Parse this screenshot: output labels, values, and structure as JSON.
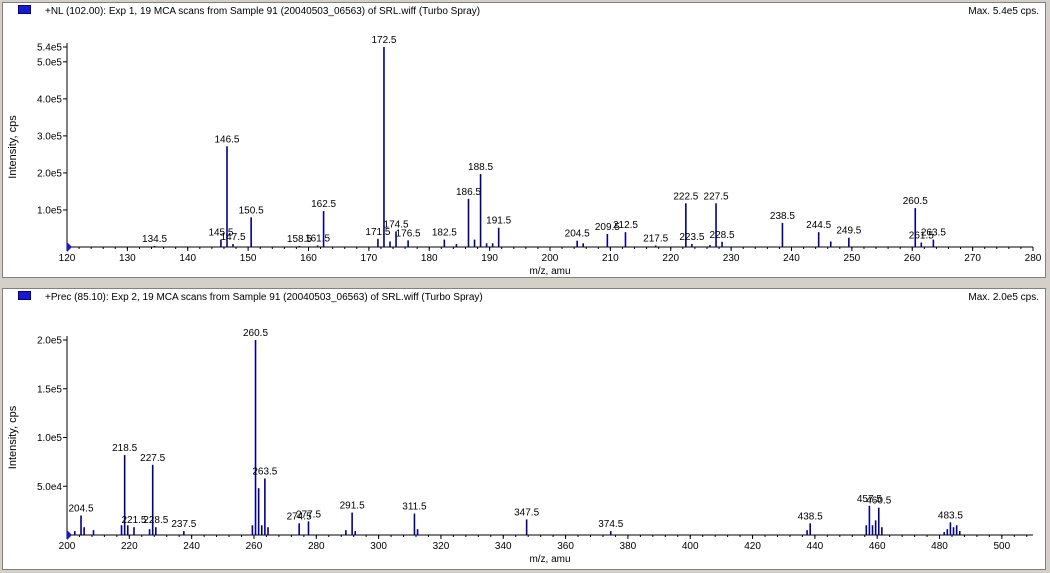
{
  "colors": {
    "series": "#00008b",
    "axis": "#000000",
    "marker": "#1a1acc"
  },
  "panels": [
    {
      "title": "+NL (102.00): Exp 1, 19 MCA scans from Sample 91 (20040503_06563) of SRL.wiff (Turbo Spray)",
      "max_label": "Max. 5.4e5 cps."
    },
    {
      "title": "+Prec (85.10): Exp 2, 19 MCA scans from Sample 91 (20040503_06563) of SRL.wiff (Turbo Spray)",
      "max_label": "Max. 2.0e5 cps."
    }
  ],
  "chart_data": [
    {
      "type": "bar",
      "xlabel": "m/z, amu",
      "ylabel": "Intensity, cps",
      "xlim": [
        120,
        280
      ],
      "ylim": [
        0,
        540000
      ],
      "x_ticks": [
        120,
        130,
        140,
        150,
        160,
        170,
        180,
        190,
        200,
        210,
        220,
        230,
        240,
        250,
        260,
        270,
        280
      ],
      "y_ticks": [
        {
          "value": 100000,
          "label": "1.0e5"
        },
        {
          "value": 200000,
          "label": "2.0e5"
        },
        {
          "value": 300000,
          "label": "3.0e5"
        },
        {
          "value": 400000,
          "label": "4.0e5"
        },
        {
          "value": 500000,
          "label": "5.0e5"
        },
        {
          "value": 540000,
          "label": "5.4e5"
        }
      ],
      "peaks": [
        {
          "x": 134.5,
          "y": 3000,
          "label": "134.5"
        },
        {
          "x": 145.5,
          "y": 20000,
          "label": "145.5"
        },
        {
          "x": 146.5,
          "y": 272000,
          "label": "146.5"
        },
        {
          "x": 147.5,
          "y": 8000,
          "label": "147.5"
        },
        {
          "x": 150.5,
          "y": 80000,
          "label": "150.5"
        },
        {
          "x": 158.5,
          "y": 3000,
          "label": "158.5"
        },
        {
          "x": 161.5,
          "y": 4000,
          "label": "161.5"
        },
        {
          "x": 162.5,
          "y": 97000,
          "label": "162.5"
        },
        {
          "x": 171.5,
          "y": 22000,
          "label": "171.5"
        },
        {
          "x": 172.5,
          "y": 540000,
          "label": "172.5"
        },
        {
          "x": 173.5,
          "y": 15000
        },
        {
          "x": 174.5,
          "y": 42000,
          "label": "174.5"
        },
        {
          "x": 176.5,
          "y": 18000,
          "label": "176.5"
        },
        {
          "x": 182.5,
          "y": 20000,
          "label": "182.5"
        },
        {
          "x": 184.5,
          "y": 8000
        },
        {
          "x": 186.5,
          "y": 130000,
          "label": "186.5"
        },
        {
          "x": 187.5,
          "y": 20000
        },
        {
          "x": 188.5,
          "y": 197000,
          "label": "188.5"
        },
        {
          "x": 189.5,
          "y": 10000
        },
        {
          "x": 190.5,
          "y": 10000
        },
        {
          "x": 191.5,
          "y": 52000,
          "label": "191.5"
        },
        {
          "x": 204.5,
          "y": 17000,
          "label": "204.5"
        },
        {
          "x": 205.5,
          "y": 10000
        },
        {
          "x": 209.5,
          "y": 35000,
          "label": "209.5"
        },
        {
          "x": 212.5,
          "y": 40000,
          "label": "212.5"
        },
        {
          "x": 217.5,
          "y": 4000,
          "label": "217.5"
        },
        {
          "x": 222.5,
          "y": 118000,
          "label": "222.5"
        },
        {
          "x": 223.5,
          "y": 8000,
          "label": "223.5"
        },
        {
          "x": 226.5,
          "y": 5000
        },
        {
          "x": 227.5,
          "y": 118000,
          "label": "227.5"
        },
        {
          "x": 228.5,
          "y": 14000,
          "label": "228.5"
        },
        {
          "x": 238.5,
          "y": 65000,
          "label": "238.5"
        },
        {
          "x": 244.5,
          "y": 40000,
          "label": "244.5"
        },
        {
          "x": 246.5,
          "y": 15000
        },
        {
          "x": 249.5,
          "y": 25000,
          "label": "249.5"
        },
        {
          "x": 260.5,
          "y": 105000,
          "label": "260.5"
        },
        {
          "x": 261.5,
          "y": 12000,
          "label": "261.5"
        },
        {
          "x": 263.5,
          "y": 20000,
          "label": "263.5"
        }
      ]
    },
    {
      "type": "bar",
      "xlabel": "m/z, amu",
      "ylabel": "Intensity, cps",
      "xlim": [
        200,
        510
      ],
      "ylim": [
        0,
        200000
      ],
      "x_ticks": [
        200,
        220,
        240,
        260,
        280,
        300,
        320,
        340,
        360,
        380,
        400,
        420,
        440,
        460,
        480,
        500
      ],
      "y_ticks": [
        {
          "value": 50000,
          "label": "5.0e4"
        },
        {
          "value": 100000,
          "label": "1.0e5"
        },
        {
          "value": 150000,
          "label": "1.5e5"
        },
        {
          "value": 200000,
          "label": "2.0e5"
        }
      ],
      "peaks": [
        {
          "x": 202.5,
          "y": 4000
        },
        {
          "x": 204.5,
          "y": 20000,
          "label": "204.5"
        },
        {
          "x": 205.5,
          "y": 8000
        },
        {
          "x": 208.5,
          "y": 5000
        },
        {
          "x": 217.5,
          "y": 10000
        },
        {
          "x": 218.5,
          "y": 82000,
          "label": "218.5"
        },
        {
          "x": 219.5,
          "y": 10000
        },
        {
          "x": 221.5,
          "y": 8000,
          "label": "221.5"
        },
        {
          "x": 226.5,
          "y": 6000
        },
        {
          "x": 227.5,
          "y": 72000,
          "label": "227.5"
        },
        {
          "x": 228.5,
          "y": 8000,
          "label": "228.5"
        },
        {
          "x": 237.5,
          "y": 4000,
          "label": "237.5"
        },
        {
          "x": 259.5,
          "y": 10000
        },
        {
          "x": 260.5,
          "y": 200000,
          "label": "260.5"
        },
        {
          "x": 261.5,
          "y": 48000
        },
        {
          "x": 262.5,
          "y": 10000
        },
        {
          "x": 263.5,
          "y": 58000,
          "label": "263.5"
        },
        {
          "x": 264.5,
          "y": 8000
        },
        {
          "x": 274.5,
          "y": 12000,
          "label": "274.5"
        },
        {
          "x": 277.5,
          "y": 14000,
          "label": "277.5"
        },
        {
          "x": 289.5,
          "y": 5000
        },
        {
          "x": 291.5,
          "y": 23000,
          "label": "291.5"
        },
        {
          "x": 292.5,
          "y": 4000
        },
        {
          "x": 311.5,
          "y": 22000,
          "label": "311.5"
        },
        {
          "x": 312.5,
          "y": 6000
        },
        {
          "x": 347.5,
          "y": 16000,
          "label": "347.5"
        },
        {
          "x": 374.5,
          "y": 4000,
          "label": "374.5"
        },
        {
          "x": 437.5,
          "y": 5000
        },
        {
          "x": 438.5,
          "y": 12000,
          "label": "438.5"
        },
        {
          "x": 456.5,
          "y": 10000
        },
        {
          "x": 457.5,
          "y": 30000,
          "label": "457.5"
        },
        {
          "x": 458.5,
          "y": 10000
        },
        {
          "x": 459.5,
          "y": 15000
        },
        {
          "x": 460.5,
          "y": 28000,
          "label": "460.5"
        },
        {
          "x": 461.5,
          "y": 8000
        },
        {
          "x": 481.5,
          "y": 3000
        },
        {
          "x": 482.5,
          "y": 6000
        },
        {
          "x": 483.5,
          "y": 13000,
          "label": "483.5"
        },
        {
          "x": 484.5,
          "y": 8000
        },
        {
          "x": 485.5,
          "y": 10000
        },
        {
          "x": 486.5,
          "y": 4000
        }
      ]
    }
  ]
}
